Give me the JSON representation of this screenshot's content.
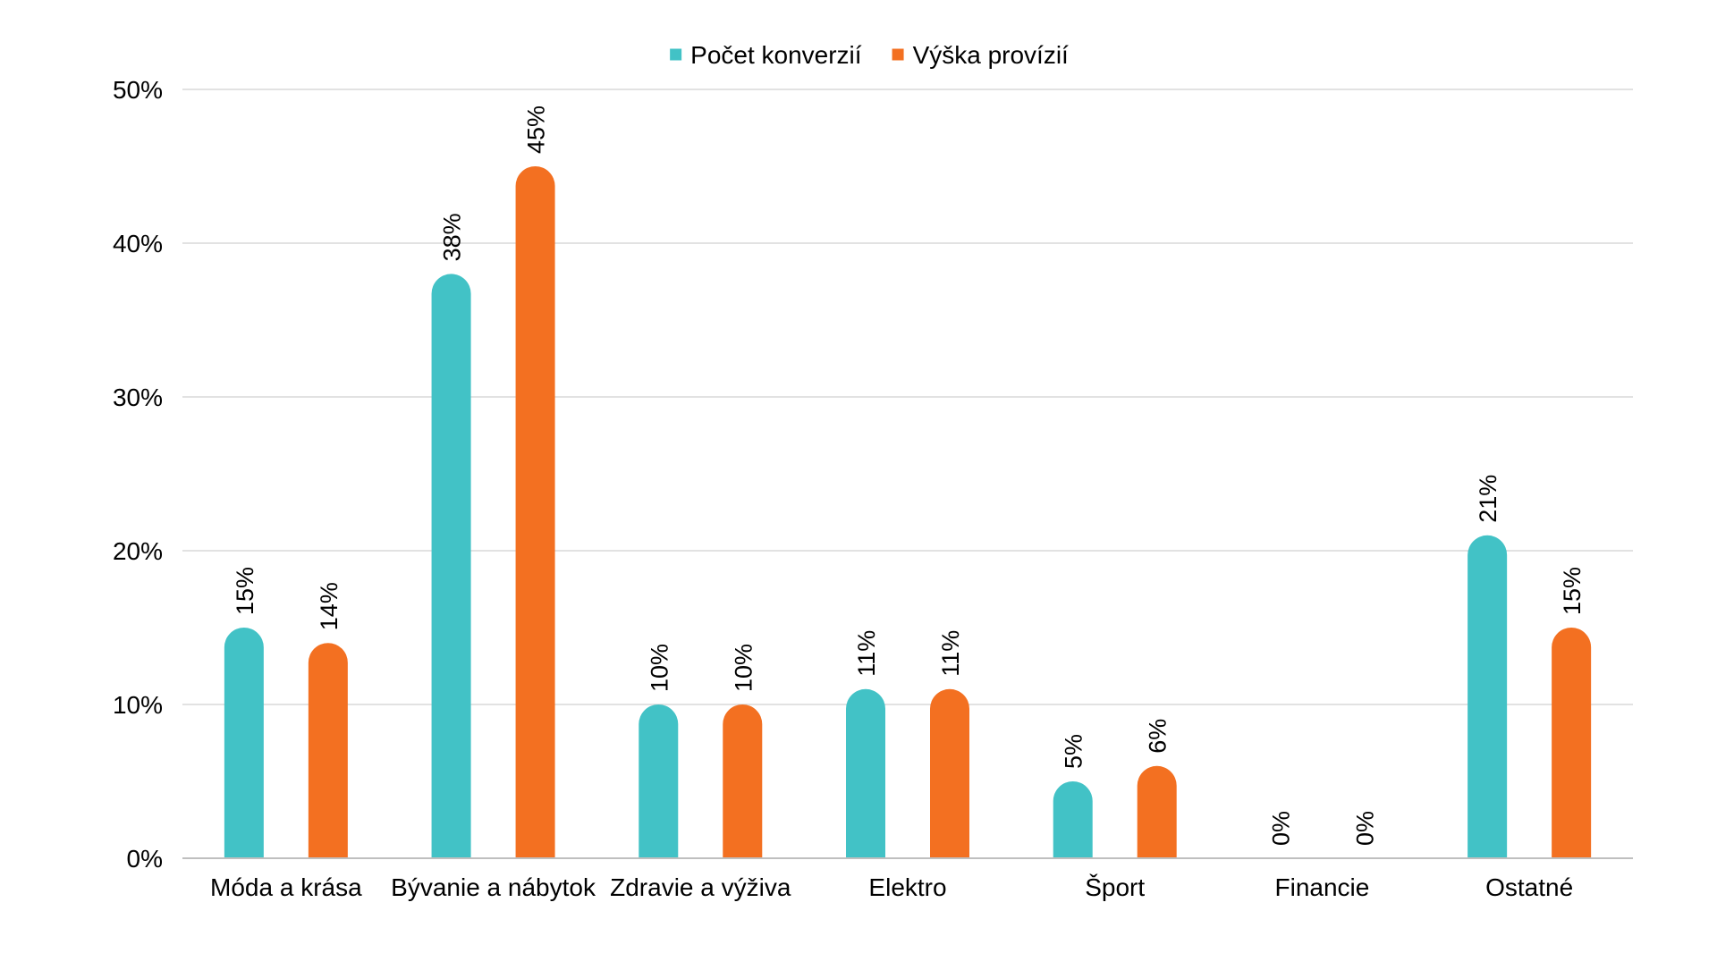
{
  "chart_data": {
    "type": "bar",
    "categories": [
      "Móda a krása",
      "Bývanie a nábytok",
      "Zdravie a výživa",
      "Elektro",
      "Šport",
      "Financie",
      "Ostatné"
    ],
    "series": [
      {
        "name": "Počet konverzií",
        "color": "#42c2c6",
        "values": [
          15,
          38,
          10,
          11,
          5,
          0,
          21
        ],
        "labels": [
          "15%",
          "38%",
          "10%",
          "11%",
          "5%",
          "0%",
          "21%"
        ]
      },
      {
        "name": "Výška provízií",
        "color": "#f37021",
        "values": [
          14,
          45,
          10,
          11,
          6,
          0,
          15
        ],
        "labels": [
          "14%",
          "45%",
          "10%",
          "11%",
          "6%",
          "0%",
          "15%"
        ]
      }
    ],
    "ylim": [
      0,
      50
    ],
    "yticks": [
      0,
      10,
      20,
      30,
      40,
      50
    ],
    "ytick_labels": [
      "0%",
      "10%",
      "20%",
      "30%",
      "40%",
      "50%"
    ],
    "grid": true,
    "legend_position": "top-center",
    "data_labels_rotated": true,
    "bar_shape": "rounded-top"
  },
  "colors": {
    "gridline": "#d9d9d9",
    "axis_line": "#bfbfbf"
  }
}
